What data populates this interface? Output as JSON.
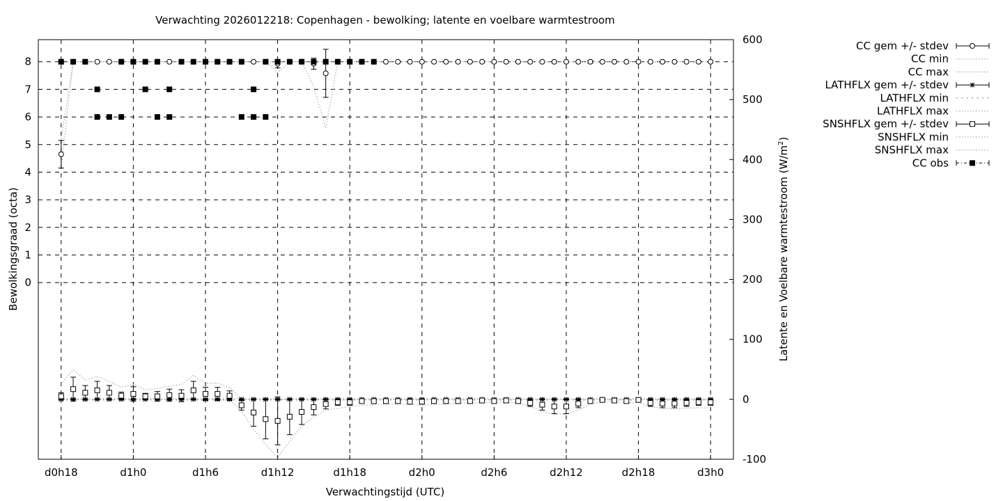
{
  "chart_data": {
    "type": "line",
    "title": "Verwachting 2026012218: Copenhagen - bewolking; latente en voelbare warmtestroom",
    "xlabel": "Verwachtingstijd (UTC)",
    "ylabel": "Bewolkingsgraad (octa)",
    "y2label": "Latente en Voelbare warmtestroom (W/m",
    "y2label_sup": "2",
    "y2label_end": ")",
    "grid": true,
    "legend_placement": "outside-top-right",
    "x_unit": "forecast hour",
    "xlim": [
      16.1,
      73.9
    ],
    "ylim": [
      -6.4,
      8.8
    ],
    "y2lim": [
      -100,
      600
    ],
    "x_ticks": [
      {
        "value": 18,
        "label": "d0h18"
      },
      {
        "value": 24,
        "label": "d1h0"
      },
      {
        "value": 30,
        "label": "d1h6"
      },
      {
        "value": 36,
        "label": "d1h12"
      },
      {
        "value": 42,
        "label": "d1h18"
      },
      {
        "value": 48,
        "label": "d2h0"
      },
      {
        "value": 54,
        "label": "d2h6"
      },
      {
        "value": 60,
        "label": "d2h12"
      },
      {
        "value": 66,
        "label": "d2h18"
      },
      {
        "value": 72,
        "label": "d3h0"
      }
    ],
    "y_ticks": [
      "0",
      "1",
      "2",
      "3",
      "4",
      "5",
      "6",
      "7",
      "8"
    ],
    "y2_ticks": [
      "-100",
      "0",
      "100",
      "200",
      "300",
      "400",
      "500",
      "600"
    ],
    "x_start": 18,
    "x_step": 1,
    "series": [
      {
        "name": "CC gem +/- stdev",
        "axis": "y",
        "style": "errorbar-circle",
        "values": [
          4.65,
          8,
          8,
          8,
          8,
          8,
          8,
          8,
          8,
          8,
          8,
          8,
          8,
          8,
          8,
          8,
          8,
          8,
          7.93,
          8,
          8,
          7.93,
          7.58,
          8,
          8,
          8,
          8,
          8,
          8,
          8,
          8,
          8,
          8,
          8,
          8,
          8,
          8,
          8,
          8,
          8,
          8,
          8,
          8,
          8,
          8,
          8,
          8,
          8,
          8,
          8,
          8,
          8,
          8,
          8,
          8
        ],
        "stdev": [
          0.5,
          0,
          0,
          0,
          0,
          0,
          0,
          0,
          0,
          0,
          0,
          0,
          0,
          0,
          0,
          0,
          0,
          0,
          0.15,
          0,
          0,
          0.2,
          0.87,
          0,
          0,
          0,
          0,
          0,
          0,
          0,
          0,
          0,
          0,
          0,
          0,
          0,
          0,
          0,
          0,
          0,
          0,
          0,
          0,
          0,
          0.05,
          0,
          0,
          0,
          0,
          0,
          0,
          0,
          0,
          0,
          0
        ]
      },
      {
        "name": "CC min",
        "axis": "y",
        "style": "dotted",
        "values": [
          4.15,
          8,
          8,
          8,
          8,
          8,
          8,
          8,
          8,
          8,
          8,
          8,
          8,
          8,
          8,
          8,
          8,
          8,
          7.6,
          8,
          8,
          7.1,
          5.6,
          8,
          8,
          8,
          8,
          8,
          8,
          8,
          8,
          8,
          8,
          8,
          8,
          8,
          8,
          8,
          8,
          8,
          8,
          8,
          8,
          8,
          8,
          8,
          8,
          8,
          8,
          8,
          8,
          8,
          8,
          8,
          8
        ]
      },
      {
        "name": "CC max",
        "axis": "y",
        "style": "dotted",
        "values": [
          5.2,
          8,
          8,
          8,
          8,
          8,
          8,
          8,
          8,
          8,
          8,
          8,
          8,
          8,
          8,
          8,
          8,
          8,
          8,
          8,
          8,
          8,
          8,
          8,
          8,
          8,
          8,
          8,
          8,
          8,
          8,
          8,
          8,
          8,
          8,
          8,
          8,
          8,
          8,
          8,
          8,
          8,
          8,
          8,
          8,
          8,
          8,
          8,
          8,
          8,
          8,
          8,
          8,
          8,
          8
        ]
      },
      {
        "name": "LATHFLX gem +/- stdev",
        "axis": "y2",
        "style": "errorbar-star",
        "values": [
          0,
          0,
          0,
          0,
          0,
          0,
          0,
          0,
          0,
          0,
          0,
          0,
          0,
          0,
          0,
          0,
          0,
          0,
          0,
          0,
          0,
          0,
          0,
          0,
          0,
          0,
          0,
          0,
          0,
          0,
          0,
          0,
          0,
          0,
          0,
          0,
          0,
          0,
          0,
          0,
          0,
          0,
          0,
          0,
          0,
          0,
          0,
          0,
          0,
          0,
          0,
          0,
          0,
          0,
          0
        ],
        "stdev": [
          1,
          1,
          1,
          1,
          1,
          1,
          1,
          1,
          1,
          1,
          1,
          1,
          1,
          1,
          1,
          1,
          1,
          1,
          1,
          1,
          1,
          1,
          1,
          1,
          1,
          1,
          1,
          1,
          1,
          1,
          1,
          1,
          1,
          1,
          1,
          1,
          1,
          1,
          1,
          1,
          1,
          1,
          1,
          1,
          1,
          1,
          1,
          1,
          1,
          1,
          1,
          1,
          1,
          1,
          1
        ]
      },
      {
        "name": "LATHFLX min",
        "axis": "y2",
        "style": "dotted-sparse",
        "values": [
          -1,
          -1,
          -1,
          -1,
          -1,
          -1,
          -1,
          -1,
          -1,
          -1,
          -1,
          -1,
          -1,
          -1,
          -1,
          -1,
          -1,
          -1,
          -1,
          -1,
          -1,
          -1,
          -1,
          -1,
          -1,
          -1,
          -1,
          -1,
          -1,
          -1,
          -1,
          -1,
          -1,
          -1,
          -1,
          -1,
          -1,
          -1,
          -1,
          -1,
          -1,
          -1,
          -1,
          -1,
          -1,
          -1,
          -1,
          -1,
          -1,
          -1,
          -1,
          -1,
          -1,
          -1,
          -1
        ]
      },
      {
        "name": "LATHFLX max",
        "axis": "y2",
        "style": "dotted",
        "values": [
          1,
          1,
          1,
          1,
          1,
          1,
          1,
          1,
          1,
          1,
          1,
          1,
          1,
          1,
          1,
          1,
          1,
          1,
          1,
          1,
          1,
          1,
          1,
          1,
          1,
          1,
          1,
          1,
          1,
          1,
          1,
          1,
          1,
          1,
          1,
          1,
          1,
          1,
          1,
          1,
          1,
          1,
          1,
          1,
          1,
          1,
          1,
          1,
          1,
          1,
          1,
          1,
          1,
          1,
          1
        ]
      },
      {
        "name": "SNSHFLX gem +/- stdev",
        "axis": "y2",
        "style": "errorbar-square",
        "values": [
          5,
          17,
          11,
          15,
          11,
          6,
          9,
          5,
          5,
          7,
          6,
          15,
          9,
          9,
          6,
          -10,
          -22,
          -33,
          -36,
          -29,
          -21,
          -13,
          -8,
          -5,
          -5,
          -3,
          -3,
          -3,
          -3,
          -4,
          -4,
          -3,
          -3,
          -3,
          -3,
          -2,
          -3,
          -2,
          -3,
          -6,
          -9,
          -12,
          -12,
          -7,
          -3,
          -1,
          -2,
          -3,
          -1,
          -6,
          -7,
          -7,
          -6,
          -5,
          -5
        ],
        "stdev": [
          6,
          20,
          12,
          15,
          12,
          6,
          12,
          5,
          8,
          10,
          10,
          15,
          11,
          11,
          8,
          8,
          23,
          33,
          40,
          30,
          21,
          13,
          8,
          5,
          5,
          3,
          3,
          3,
          3,
          4,
          4,
          3,
          3,
          3,
          3,
          2,
          3,
          2,
          3,
          6,
          9,
          12,
          12,
          7,
          3,
          1,
          2,
          3,
          1,
          6,
          7,
          7,
          6,
          5,
          5
        ]
      },
      {
        "name": "SNSHFLX min",
        "axis": "y2",
        "style": "dotted",
        "values": [
          0,
          0,
          0,
          0,
          0,
          0,
          0,
          0,
          0,
          0,
          0,
          0,
          0,
          0,
          0,
          -20,
          -50,
          -75,
          -97,
          -70,
          -45,
          -30,
          -18,
          -15,
          -12,
          -10,
          -9,
          -8,
          -8,
          -8,
          -10,
          -8,
          -8,
          -7,
          -6,
          -6,
          -5,
          -5,
          -6,
          -12,
          -20,
          -25,
          -25,
          -18,
          -8,
          -4,
          -4,
          -6,
          -5,
          -12,
          -15,
          -16,
          -15,
          -14,
          -14
        ]
      },
      {
        "name": "SNSHFLX max",
        "axis": "y2",
        "style": "dotted",
        "values": [
          25,
          50,
          32,
          38,
          30,
          20,
          25,
          16,
          18,
          22,
          25,
          40,
          27,
          27,
          20,
          0,
          0,
          0,
          0,
          0,
          0,
          0,
          0,
          0,
          0,
          0,
          0,
          0,
          0,
          0,
          0,
          0,
          0,
          0,
          0,
          0,
          0,
          0,
          0,
          0,
          0,
          0,
          0,
          0,
          0,
          0,
          0,
          0,
          0,
          0,
          0,
          0,
          0,
          0,
          0
        ]
      }
    ],
    "cc_obs": {
      "name": "CC obs",
      "axis": "y",
      "style": "points-square",
      "points": [
        [
          18,
          8
        ],
        [
          19,
          8
        ],
        [
          20,
          8
        ],
        [
          21,
          7
        ],
        [
          21,
          6
        ],
        [
          22,
          6
        ],
        [
          23,
          8
        ],
        [
          23,
          6
        ],
        [
          24,
          8
        ],
        [
          25,
          8
        ],
        [
          25,
          7
        ],
        [
          26,
          8
        ],
        [
          26,
          6
        ],
        [
          27,
          7
        ],
        [
          27,
          6
        ],
        [
          28,
          8
        ],
        [
          29,
          8
        ],
        [
          30,
          8
        ],
        [
          31,
          8
        ],
        [
          32,
          8
        ],
        [
          33,
          8
        ],
        [
          33,
          6
        ],
        [
          34,
          7
        ],
        [
          34,
          6
        ],
        [
          35,
          8
        ],
        [
          35,
          6
        ],
        [
          36,
          8
        ],
        [
          37,
          8
        ],
        [
          38,
          8
        ],
        [
          39,
          8
        ],
        [
          40,
          8
        ],
        [
          41,
          8
        ],
        [
          42,
          8
        ],
        [
          43,
          8
        ],
        [
          44,
          8
        ]
      ]
    }
  }
}
